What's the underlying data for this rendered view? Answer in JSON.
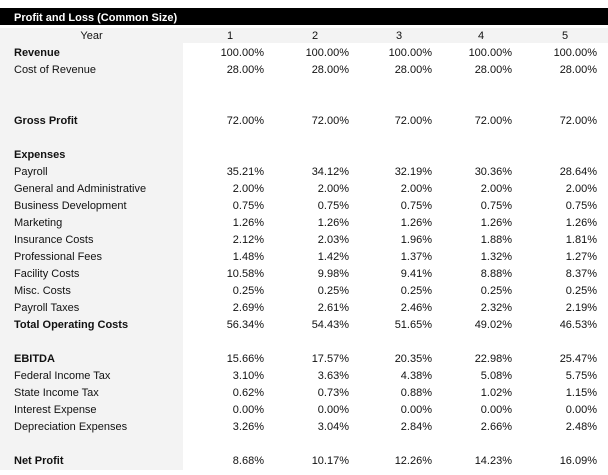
{
  "title": "Profit and Loss (Common Size)",
  "header": {
    "label": "Year",
    "years": [
      "1",
      "2",
      "3",
      "4",
      "5"
    ]
  },
  "rows": [
    {
      "label": "Revenue",
      "bold": true,
      "values": [
        "100.00%",
        "100.00%",
        "100.00%",
        "100.00%",
        "100.00%"
      ]
    },
    {
      "label": "Cost of Revenue",
      "values": [
        "28.00%",
        "28.00%",
        "28.00%",
        "28.00%",
        "28.00%"
      ]
    },
    {
      "label": "",
      "values": []
    },
    {
      "label": "",
      "values": []
    },
    {
      "label": "Gross Profit",
      "bold": true,
      "values": [
        "72.00%",
        "72.00%",
        "72.00%",
        "72.00%",
        "72.00%"
      ]
    },
    {
      "label": "",
      "values": []
    },
    {
      "label": "Expenses",
      "bold": true,
      "values": []
    },
    {
      "label": "Payroll",
      "values": [
        "35.21%",
        "34.12%",
        "32.19%",
        "30.36%",
        "28.64%"
      ]
    },
    {
      "label": "General and Administrative",
      "values": [
        "2.00%",
        "2.00%",
        "2.00%",
        "2.00%",
        "2.00%"
      ]
    },
    {
      "label": "Business Development",
      "values": [
        "0.75%",
        "0.75%",
        "0.75%",
        "0.75%",
        "0.75%"
      ]
    },
    {
      "label": "Marketing",
      "values": [
        "1.26%",
        "1.26%",
        "1.26%",
        "1.26%",
        "1.26%"
      ]
    },
    {
      "label": "Insurance Costs",
      "values": [
        "2.12%",
        "2.03%",
        "1.96%",
        "1.88%",
        "1.81%"
      ]
    },
    {
      "label": "Professional Fees",
      "values": [
        "1.48%",
        "1.42%",
        "1.37%",
        "1.32%",
        "1.27%"
      ]
    },
    {
      "label": "Facility Costs",
      "values": [
        "10.58%",
        "9.98%",
        "9.41%",
        "8.88%",
        "8.37%"
      ]
    },
    {
      "label": "Misc. Costs",
      "values": [
        "0.25%",
        "0.25%",
        "0.25%",
        "0.25%",
        "0.25%"
      ]
    },
    {
      "label": "Payroll Taxes",
      "values": [
        "2.69%",
        "2.61%",
        "2.46%",
        "2.32%",
        "2.19%"
      ]
    },
    {
      "label": "Total Operating Costs",
      "bold": true,
      "values": [
        "56.34%",
        "54.43%",
        "51.65%",
        "49.02%",
        "46.53%"
      ]
    },
    {
      "label": "",
      "values": []
    },
    {
      "label": "EBITDA",
      "bold": true,
      "values": [
        "15.66%",
        "17.57%",
        "20.35%",
        "22.98%",
        "25.47%"
      ]
    },
    {
      "label": "Federal Income Tax",
      "values": [
        "3.10%",
        "3.63%",
        "4.38%",
        "5.08%",
        "5.75%"
      ]
    },
    {
      "label": "State Income Tax",
      "values": [
        "0.62%",
        "0.73%",
        "0.88%",
        "1.02%",
        "1.15%"
      ]
    },
    {
      "label": "Interest Expense",
      "values": [
        "0.00%",
        "0.00%",
        "0.00%",
        "0.00%",
        "0.00%"
      ]
    },
    {
      "label": "Depreciation Expenses",
      "values": [
        "3.26%",
        "3.04%",
        "2.84%",
        "2.66%",
        "2.48%"
      ]
    },
    {
      "label": "",
      "values": []
    },
    {
      "label": "Net Profit",
      "bold": true,
      "values": [
        "8.68%",
        "10.17%",
        "12.26%",
        "14.23%",
        "16.09%"
      ]
    }
  ]
}
